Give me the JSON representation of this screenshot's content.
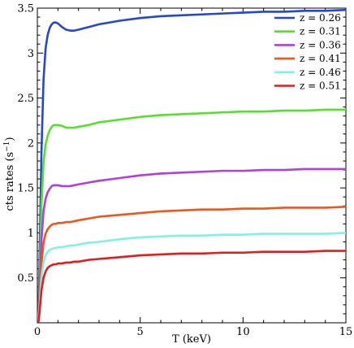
{
  "chart_data": {
    "type": "line",
    "xlabel": "T (keV)",
    "ylabel": "cts rates (s",
    "ylabel_sup": "−1",
    "ylabel_close": ")",
    "xlim": [
      0,
      15
    ],
    "ylim": [
      0,
      3.5
    ],
    "xticks": [
      0,
      5,
      10,
      15
    ],
    "yticks": [
      0.5,
      1,
      1.5,
      2,
      2.5,
      3,
      3.5
    ],
    "xtick_labels": [
      "0",
      "5",
      "10",
      "15"
    ],
    "ytick_labels": [
      "0.5",
      "1",
      "1.5",
      "2",
      "2.5",
      "3",
      "3.5"
    ],
    "grid": false,
    "legend_position": "top-right",
    "series": [
      {
        "name": "z = 0.26",
        "color": "#2446d8",
        "x": [
          0.05,
          0.1,
          0.2,
          0.3,
          0.4,
          0.5,
          0.6,
          0.7,
          0.8,
          0.9,
          1.0,
          1.2,
          1.4,
          1.6,
          1.8,
          2.0,
          2.5,
          3,
          4,
          5,
          6,
          7,
          8,
          9,
          10,
          11,
          12,
          13,
          14,
          15
        ],
        "y": [
          0.02,
          0.6,
          1.9,
          2.7,
          3.05,
          3.2,
          3.28,
          3.32,
          3.34,
          3.34,
          3.33,
          3.29,
          3.26,
          3.25,
          3.25,
          3.26,
          3.29,
          3.32,
          3.36,
          3.39,
          3.41,
          3.42,
          3.43,
          3.44,
          3.45,
          3.46,
          3.46,
          3.47,
          3.47,
          3.48
        ]
      },
      {
        "name": "z = 0.31",
        "color": "#55e02e",
        "x": [
          0.05,
          0.1,
          0.2,
          0.3,
          0.4,
          0.5,
          0.6,
          0.7,
          0.8,
          0.9,
          1.0,
          1.2,
          1.4,
          1.6,
          1.8,
          2.0,
          2.5,
          3,
          4,
          5,
          6,
          7,
          8,
          9,
          10,
          11,
          12,
          13,
          14,
          15
        ],
        "y": [
          0.02,
          0.4,
          1.3,
          1.78,
          1.98,
          2.08,
          2.14,
          2.18,
          2.2,
          2.2,
          2.2,
          2.19,
          2.17,
          2.17,
          2.17,
          2.18,
          2.2,
          2.23,
          2.26,
          2.29,
          2.31,
          2.32,
          2.33,
          2.34,
          2.35,
          2.35,
          2.36,
          2.36,
          2.37,
          2.37
        ]
      },
      {
        "name": "z = 0.36",
        "color": "#b03ee0",
        "x": [
          0.05,
          0.1,
          0.2,
          0.3,
          0.4,
          0.5,
          0.6,
          0.7,
          0.8,
          0.9,
          1.0,
          1.2,
          1.4,
          1.6,
          1.8,
          2.0,
          2.5,
          3,
          4,
          5,
          6,
          7,
          8,
          9,
          10,
          11,
          12,
          13,
          14,
          15
        ],
        "y": [
          0.02,
          0.3,
          0.92,
          1.24,
          1.38,
          1.45,
          1.49,
          1.52,
          1.53,
          1.53,
          1.53,
          1.52,
          1.52,
          1.52,
          1.53,
          1.54,
          1.56,
          1.58,
          1.61,
          1.64,
          1.66,
          1.67,
          1.68,
          1.69,
          1.69,
          1.7,
          1.7,
          1.71,
          1.71,
          1.71
        ]
      },
      {
        "name": "z = 0.41",
        "color": "#f0561c",
        "x": [
          0.05,
          0.1,
          0.2,
          0.3,
          0.4,
          0.5,
          0.6,
          0.7,
          0.8,
          0.9,
          1.0,
          1.2,
          1.4,
          1.6,
          1.8,
          2.0,
          2.5,
          3,
          4,
          5,
          6,
          7,
          8,
          9,
          10,
          11,
          12,
          13,
          14,
          15
        ],
        "y": [
          0.02,
          0.22,
          0.66,
          0.89,
          0.99,
          1.04,
          1.07,
          1.09,
          1.1,
          1.1,
          1.11,
          1.11,
          1.12,
          1.12,
          1.13,
          1.14,
          1.16,
          1.18,
          1.2,
          1.22,
          1.24,
          1.25,
          1.26,
          1.26,
          1.27,
          1.27,
          1.28,
          1.28,
          1.28,
          1.29
        ]
      },
      {
        "name": "z = 0.46",
        "color": "#7ff2e4",
        "x": [
          0.05,
          0.1,
          0.2,
          0.3,
          0.4,
          0.5,
          0.6,
          0.7,
          0.8,
          0.9,
          1.0,
          1.2,
          1.4,
          1.6,
          1.8,
          2.0,
          2.5,
          3,
          4,
          5,
          6,
          7,
          8,
          9,
          10,
          11,
          12,
          13,
          14,
          15
        ],
        "y": [
          0.02,
          0.16,
          0.5,
          0.67,
          0.75,
          0.79,
          0.81,
          0.82,
          0.83,
          0.83,
          0.84,
          0.84,
          0.85,
          0.86,
          0.86,
          0.87,
          0.89,
          0.9,
          0.93,
          0.95,
          0.96,
          0.97,
          0.97,
          0.98,
          0.98,
          0.99,
          0.99,
          0.99,
          0.99,
          1.0
        ]
      },
      {
        "name": "z = 0.51",
        "color": "#e51b1b",
        "x": [
          0.05,
          0.1,
          0.2,
          0.3,
          0.4,
          0.5,
          0.6,
          0.7,
          0.8,
          0.9,
          1.0,
          1.2,
          1.4,
          1.6,
          1.8,
          2.0,
          2.5,
          3,
          4,
          5,
          6,
          7,
          8,
          9,
          10,
          11,
          12,
          13,
          14,
          15
        ],
        "y": [
          0.0,
          0.1,
          0.36,
          0.5,
          0.57,
          0.61,
          0.63,
          0.64,
          0.65,
          0.65,
          0.66,
          0.66,
          0.67,
          0.67,
          0.68,
          0.68,
          0.7,
          0.71,
          0.73,
          0.75,
          0.76,
          0.77,
          0.77,
          0.78,
          0.78,
          0.79,
          0.79,
          0.79,
          0.8,
          0.8
        ]
      }
    ]
  }
}
